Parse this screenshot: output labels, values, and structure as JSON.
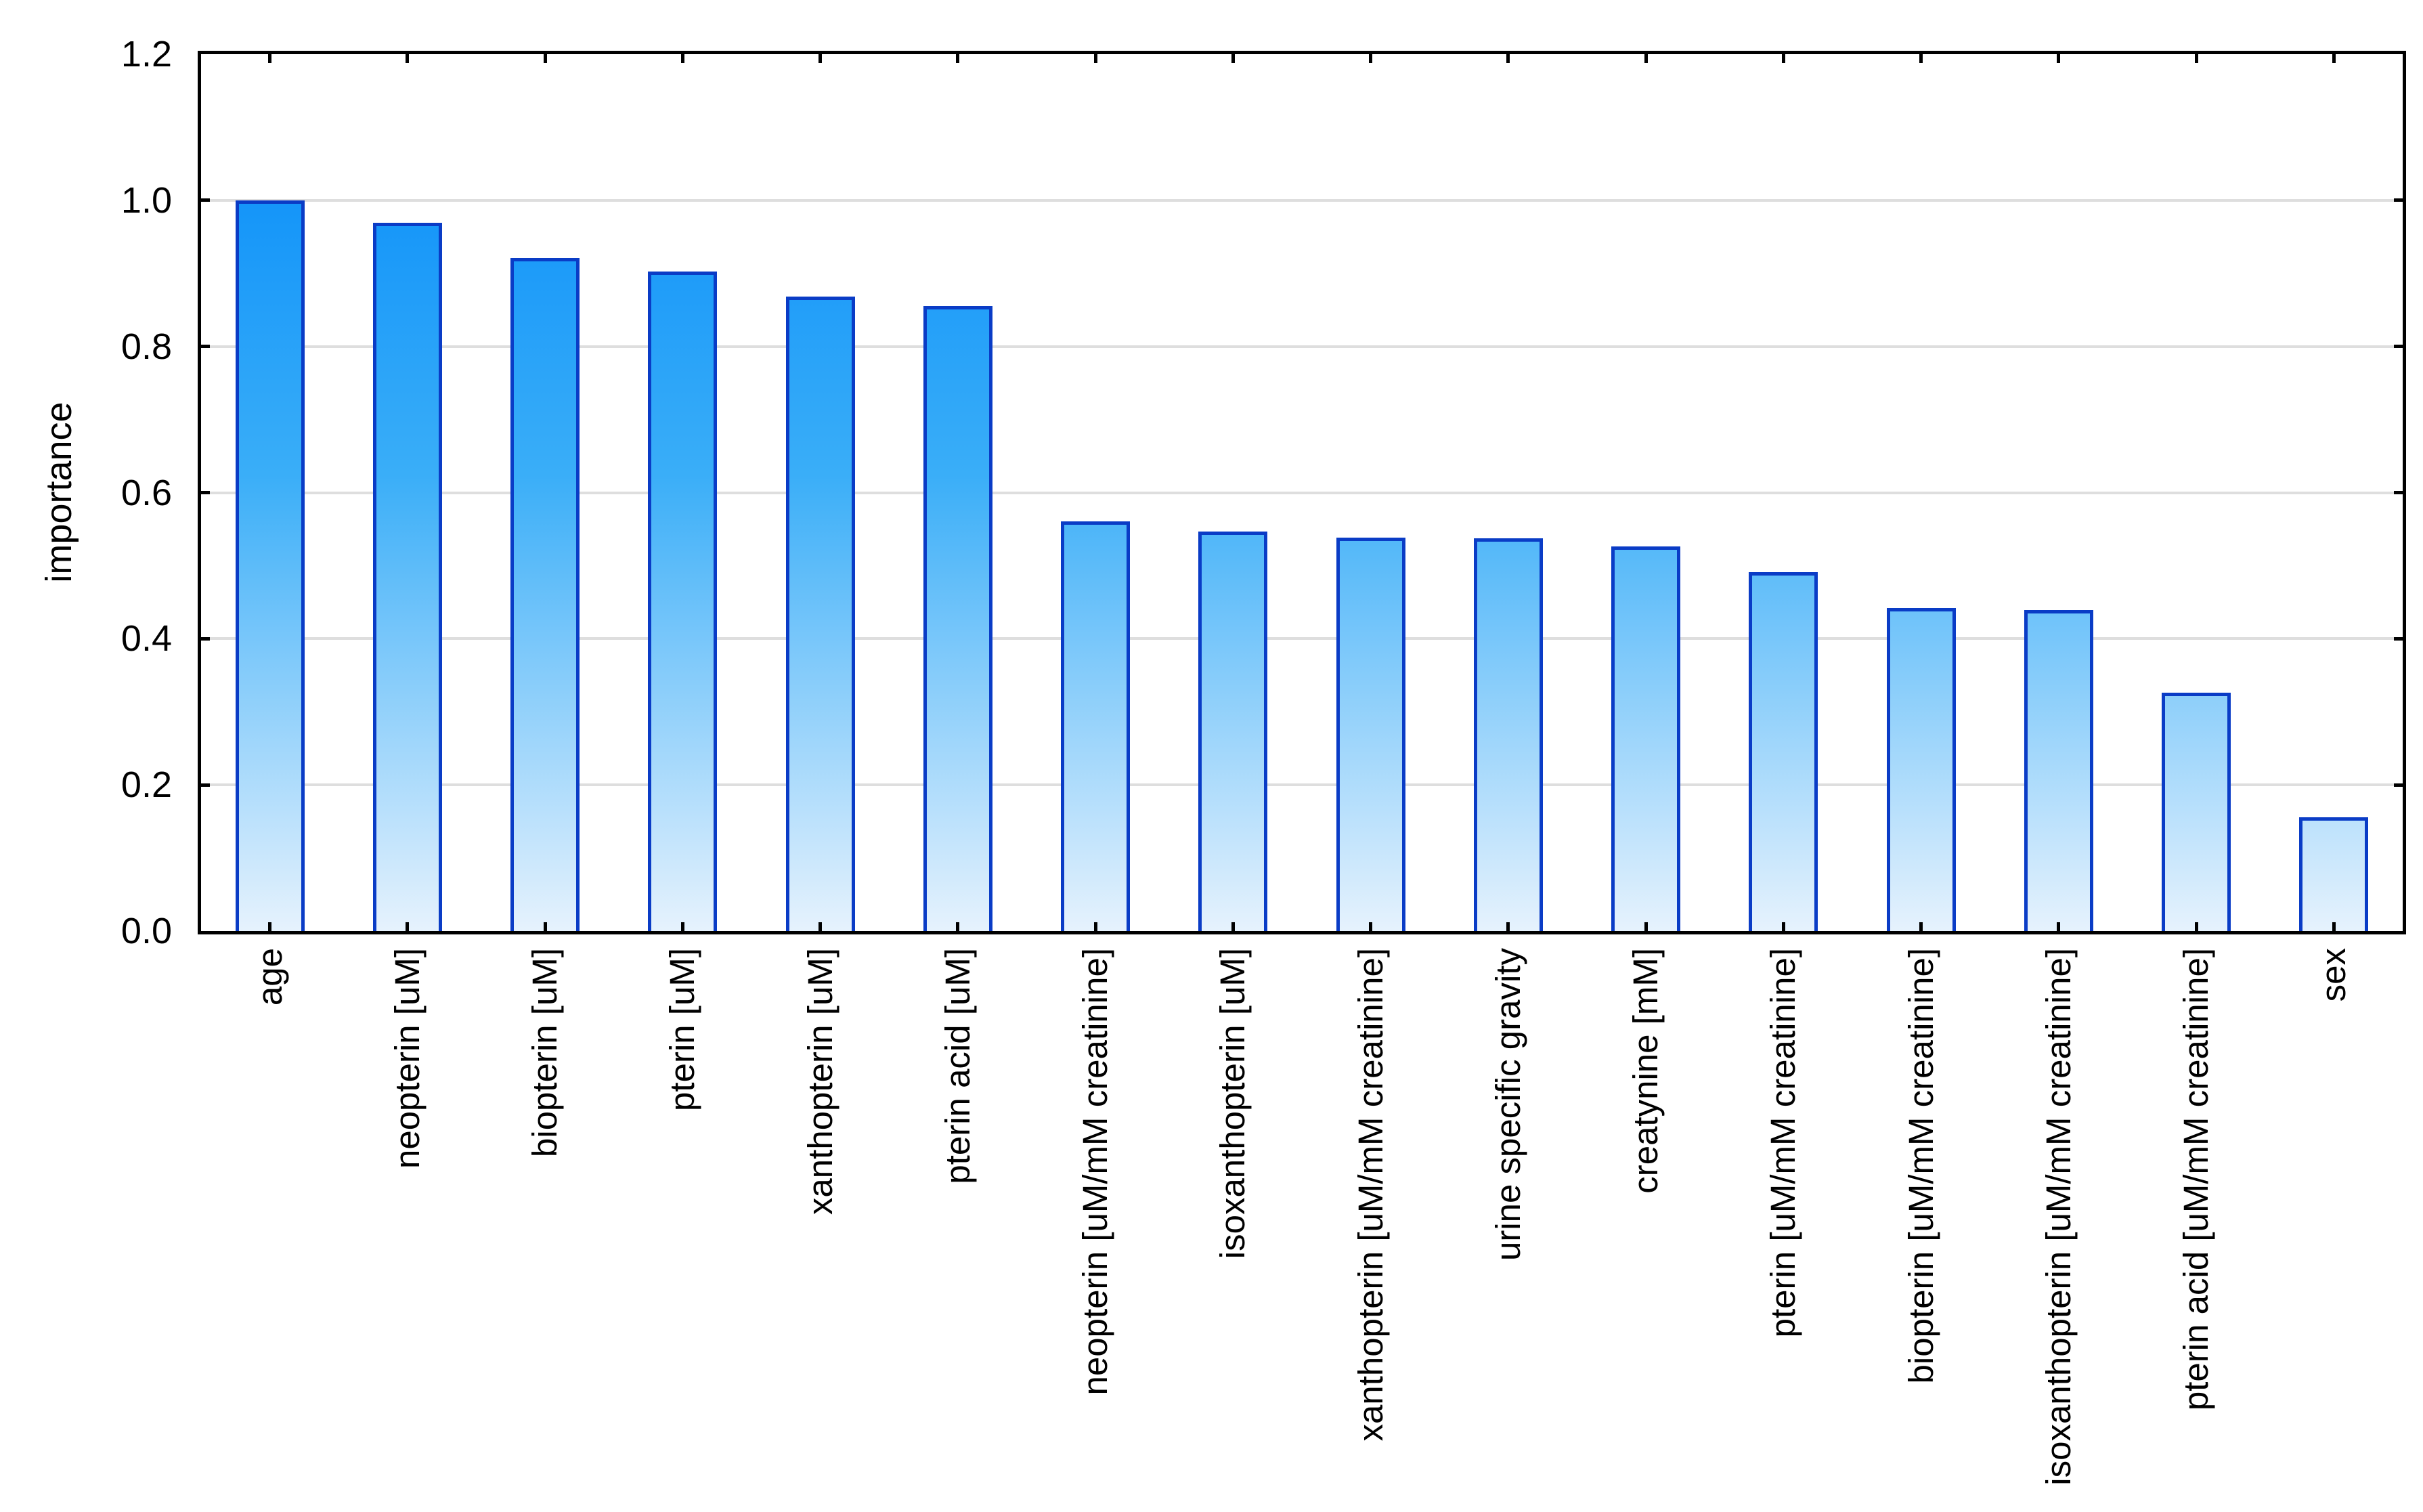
{
  "chart_data": {
    "type": "bar",
    "title": "",
    "xlabel": "",
    "ylabel": "importance",
    "categories": [
      "age",
      "neopterin [uM]",
      "biopterin [uM]",
      "pterin [uM]",
      "xanthopterin [uM]",
      "pterin acid [uM]",
      "neopterin [uM/mM creatinine]",
      "isoxanthopterin [uM]",
      "xanthopterin [uM/mM creatinine]",
      "urine specific gravity",
      "creatynine [mM]",
      "pterin [uM/mM creatinine]",
      "biopterin [uM/mM creatinine]",
      "isoxanthopterin [uM/mM creatinine]",
      "pterin acid [uM/mM creatinine]",
      "sex"
    ],
    "values": [
      1.0,
      0.969,
      0.921,
      0.903,
      0.868,
      0.855,
      0.561,
      0.547,
      0.538,
      0.537,
      0.526,
      0.491,
      0.442,
      0.439,
      0.326,
      0.156
    ],
    "ylim": [
      0,
      1.2
    ],
    "ytick_values": [
      0.0,
      0.2,
      0.4,
      0.6,
      0.8,
      1.0,
      1.2
    ],
    "ytick_labels": [
      "0.0",
      "0.2",
      "0.4",
      "0.6",
      "0.8",
      "1.0",
      "1.2"
    ],
    "grid": "horizontal",
    "legend": "none",
    "colors": {
      "bar_border": "#0a3cc6",
      "bar_gradient_top": "#0088fa",
      "bar_gradient_mid": "#3aaef8",
      "bar_gradient_bottom": "#e6f2fd",
      "gridline": "#dedede",
      "axis": "#000000",
      "background": "#ffffff",
      "text": "#000000"
    }
  }
}
